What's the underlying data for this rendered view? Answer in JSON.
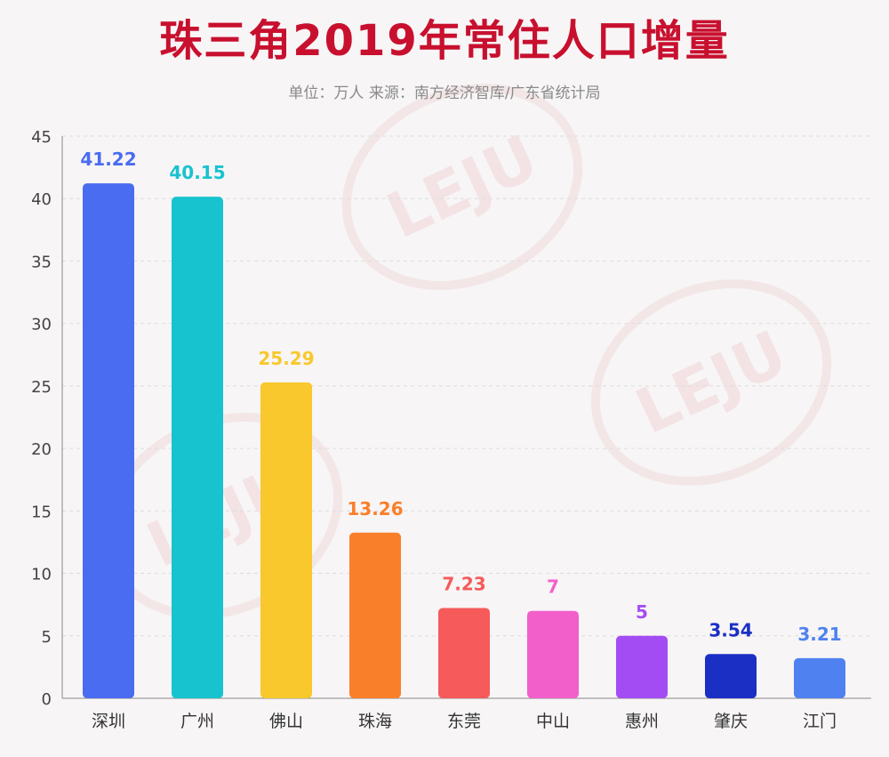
{
  "header": {
    "title": "珠三角2019年常住人口增量",
    "subtitle": "单位：万人 来源：南方经济智库/广东省统计局"
  },
  "watermark_text": "LEJU",
  "chart_data": {
    "type": "bar",
    "title": "珠三角2019年常住人口增量",
    "subtitle": "单位：万人 来源：南方经济智库/广东省统计局",
    "categories": [
      "深圳",
      "广州",
      "佛山",
      "珠海",
      "东莞",
      "中山",
      "惠州",
      "肇庆",
      "江门"
    ],
    "values": [
      41.22,
      40.15,
      25.29,
      13.26,
      7.23,
      7,
      5,
      3.54,
      3.21
    ],
    "value_labels": [
      "41.22",
      "40.15",
      "25.29",
      "13.26",
      "7.23",
      "7",
      "5",
      "3.54",
      "3.21"
    ],
    "colors": [
      "#4a6cf0",
      "#17c3cf",
      "#f8c82c",
      "#fa7f2a",
      "#f65a5a",
      "#f35fca",
      "#a44cf4",
      "#1b2fc4",
      "#4f82f0"
    ],
    "ylim": [
      0,
      45
    ],
    "yticks": [
      0,
      5,
      10,
      15,
      20,
      25,
      30,
      35,
      40,
      45
    ],
    "xlabel": "",
    "ylabel": "",
    "grid": true
  }
}
